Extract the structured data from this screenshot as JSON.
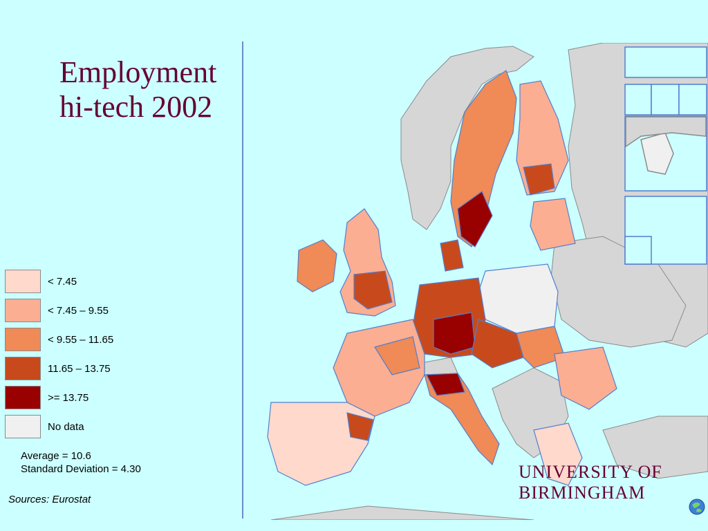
{
  "title": {
    "line1": "Employment",
    "line2": "hi-tech 2002"
  },
  "legend": [
    {
      "label": "< 7.45",
      "color": "#ffd9cc"
    },
    {
      "label": "< 7.45 – 9.55",
      "color": "#fcae92"
    },
    {
      "label": "< 9.55 – 11.65",
      "color": "#f08a56"
    },
    {
      "label": "11.65 – 13.75",
      "color": "#c84a1c"
    },
    {
      "label": ">= 13.75",
      "color": "#990000"
    },
    {
      "label": "No data",
      "color": "#f0f0f0"
    }
  ],
  "stats": {
    "average": "Average = 10.6",
    "std_dev": "Standard Deviation = 4.30"
  },
  "source": "Sources: Eurostat",
  "logo": {
    "line1": "UNIVERSITY OF",
    "line2": "BIRMINGHAM"
  },
  "map_colors": {
    "sea": "#ccffff",
    "non_eu": "#d6d6d6",
    "border": "#4f7fd0",
    "no_data": "#f0f0f0"
  }
}
